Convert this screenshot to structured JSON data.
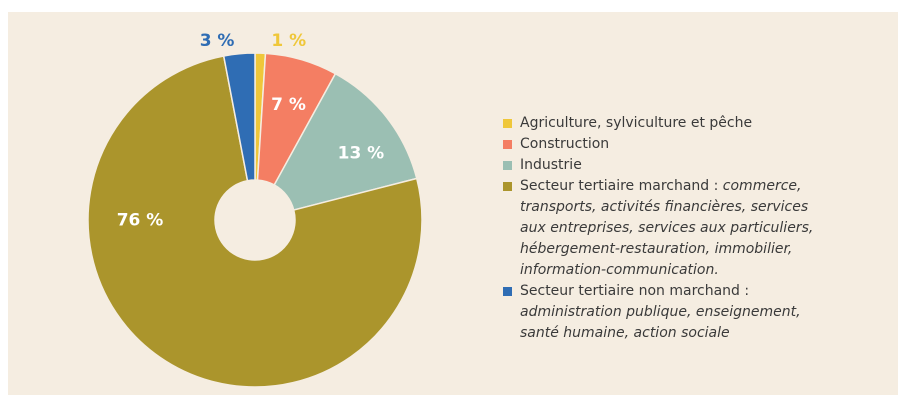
{
  "chart_data": {
    "type": "donut",
    "categories": [
      "Agriculture, sylviculture et pêche",
      "Construction",
      "Industrie",
      "Secteur tertiaire marchand : ",
      "Secteur tertiaire non marchand : "
    ],
    "category_details": [
      null,
      null,
      null,
      "commerce, transports, activités financières, services aux entreprises, services aux particuliers, hébergement-restauration, immobilier, information-communication.",
      "administration publique, enseignement, santé humaine, action sociale"
    ],
    "values": [
      1,
      7,
      13,
      76,
      3
    ],
    "value_labels": [
      "1 %",
      "7 %",
      "13 %",
      "76 %",
      "3 %"
    ],
    "colors": [
      "#efc73a",
      "#f47e63",
      "#9bbfb3",
      "#ab952c",
      "#2f6db4"
    ]
  }
}
